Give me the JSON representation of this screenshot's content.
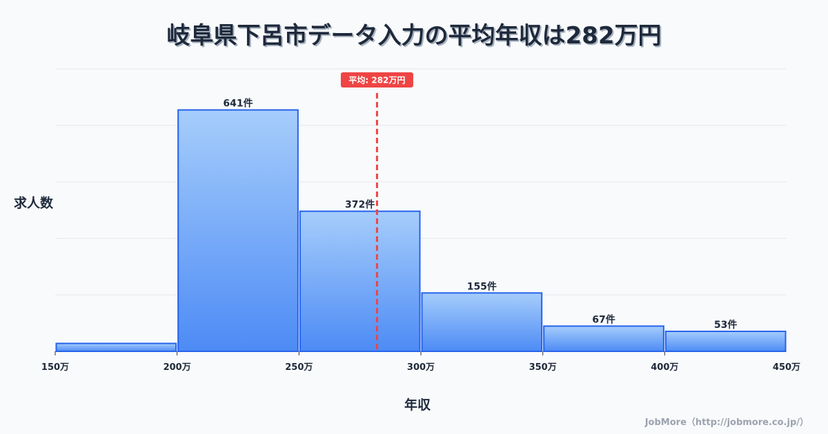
{
  "title": "岐阜県下呂市データ入力の平均年収は282万円",
  "y_axis_label": "求人数",
  "x_axis_label": "年収",
  "footer": "JobMore（http://jobmore.co.jp/）",
  "colors": {
    "background": "#f8fafc",
    "bar_fill_top": "#a6cdfb",
    "bar_fill_bottom": "#4d8bf5",
    "bar_stroke": "#2563eb",
    "mean_line": "#ef4444",
    "grid": "#e5e7eb",
    "text": "#1e293b",
    "footer_text": "#9ca3af"
  },
  "chart_data": {
    "type": "bar",
    "subtype": "histogram",
    "title": "岐阜県下呂市データ入力の平均年収は282万円",
    "xlabel": "年収",
    "ylabel": "求人数",
    "bins": [
      [
        150,
        200
      ],
      [
        200,
        250
      ],
      [
        250,
        300
      ],
      [
        300,
        350
      ],
      [
        350,
        400
      ],
      [
        400,
        450
      ]
    ],
    "categories": [
      "150-200万",
      "200-250万",
      "250-300万",
      "300-350万",
      "350-400万",
      "400-450万"
    ],
    "values": [
      21,
      641,
      372,
      155,
      67,
      53
    ],
    "labels": [
      "",
      "641件",
      "372件",
      "155件",
      "67件",
      "53件"
    ],
    "x_ticks": [
      150,
      200,
      250,
      300,
      350,
      400,
      450
    ],
    "x_tick_labels": [
      "150万",
      "200万",
      "250万",
      "300万",
      "350万",
      "400万",
      "450万"
    ],
    "xlim": [
      150,
      450
    ],
    "ylim": [
      0,
      750
    ],
    "y_gridlines": [
      0,
      150,
      300,
      450,
      600,
      750
    ],
    "grid": true,
    "legend": null,
    "mean": 282,
    "mean_label": "平均: 282万円"
  }
}
